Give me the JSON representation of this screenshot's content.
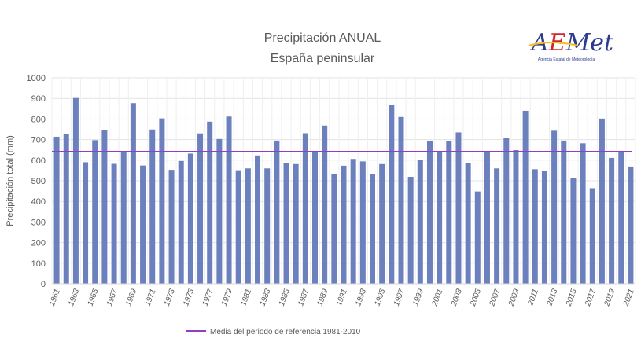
{
  "logo": {
    "text": "AEMet",
    "subtitle": "Agencia Estatal de Meteorología"
  },
  "chart_data": {
    "type": "bar",
    "title": "Precipitación ANUAL",
    "subtitle": "España peninsular",
    "xlabel": "",
    "ylabel": "Precipitación total (mm)",
    "ylim": [
      0,
      1000
    ],
    "yticks": [
      0,
      100,
      200,
      300,
      400,
      500,
      600,
      700,
      800,
      900,
      1000
    ],
    "grid": true,
    "categories": [
      "1961",
      "1962",
      "1963",
      "1964",
      "1965",
      "1966",
      "1967",
      "1968",
      "1969",
      "1970",
      "1971",
      "1972",
      "1973",
      "1974",
      "1975",
      "1976",
      "1977",
      "1978",
      "1979",
      "1980",
      "1981",
      "1982",
      "1983",
      "1984",
      "1985",
      "1986",
      "1987",
      "1988",
      "1989",
      "1990",
      "1991",
      "1992",
      "1993",
      "1994",
      "1995",
      "1996",
      "1997",
      "1998",
      "1999",
      "2000",
      "2001",
      "2002",
      "2003",
      "2004",
      "2005",
      "2006",
      "2007",
      "2008",
      "2009",
      "2010",
      "2011",
      "2012",
      "2013",
      "2014",
      "2015",
      "2016",
      "2017",
      "2018",
      "2019",
      "2020",
      "2021"
    ],
    "values": [
      714,
      728,
      902,
      590,
      697,
      745,
      582,
      640,
      877,
      574,
      749,
      803,
      553,
      596,
      632,
      730,
      787,
      703,
      812,
      551,
      560,
      623,
      560,
      695,
      585,
      581,
      731,
      640,
      768,
      534,
      573,
      606,
      594,
      531,
      581,
      869,
      810,
      519,
      602,
      691,
      640,
      691,
      735,
      585,
      448,
      640,
      560,
      706,
      649,
      840,
      556,
      547,
      743,
      695,
      514,
      682,
      464,
      802,
      611,
      640,
      569
    ],
    "bar_color": "#6b80bd",
    "reference_line": {
      "label": "Media del periodo de referencia 1981-2010",
      "value": 641,
      "color": "#8e3fc4"
    },
    "legend_position": "bottom"
  }
}
